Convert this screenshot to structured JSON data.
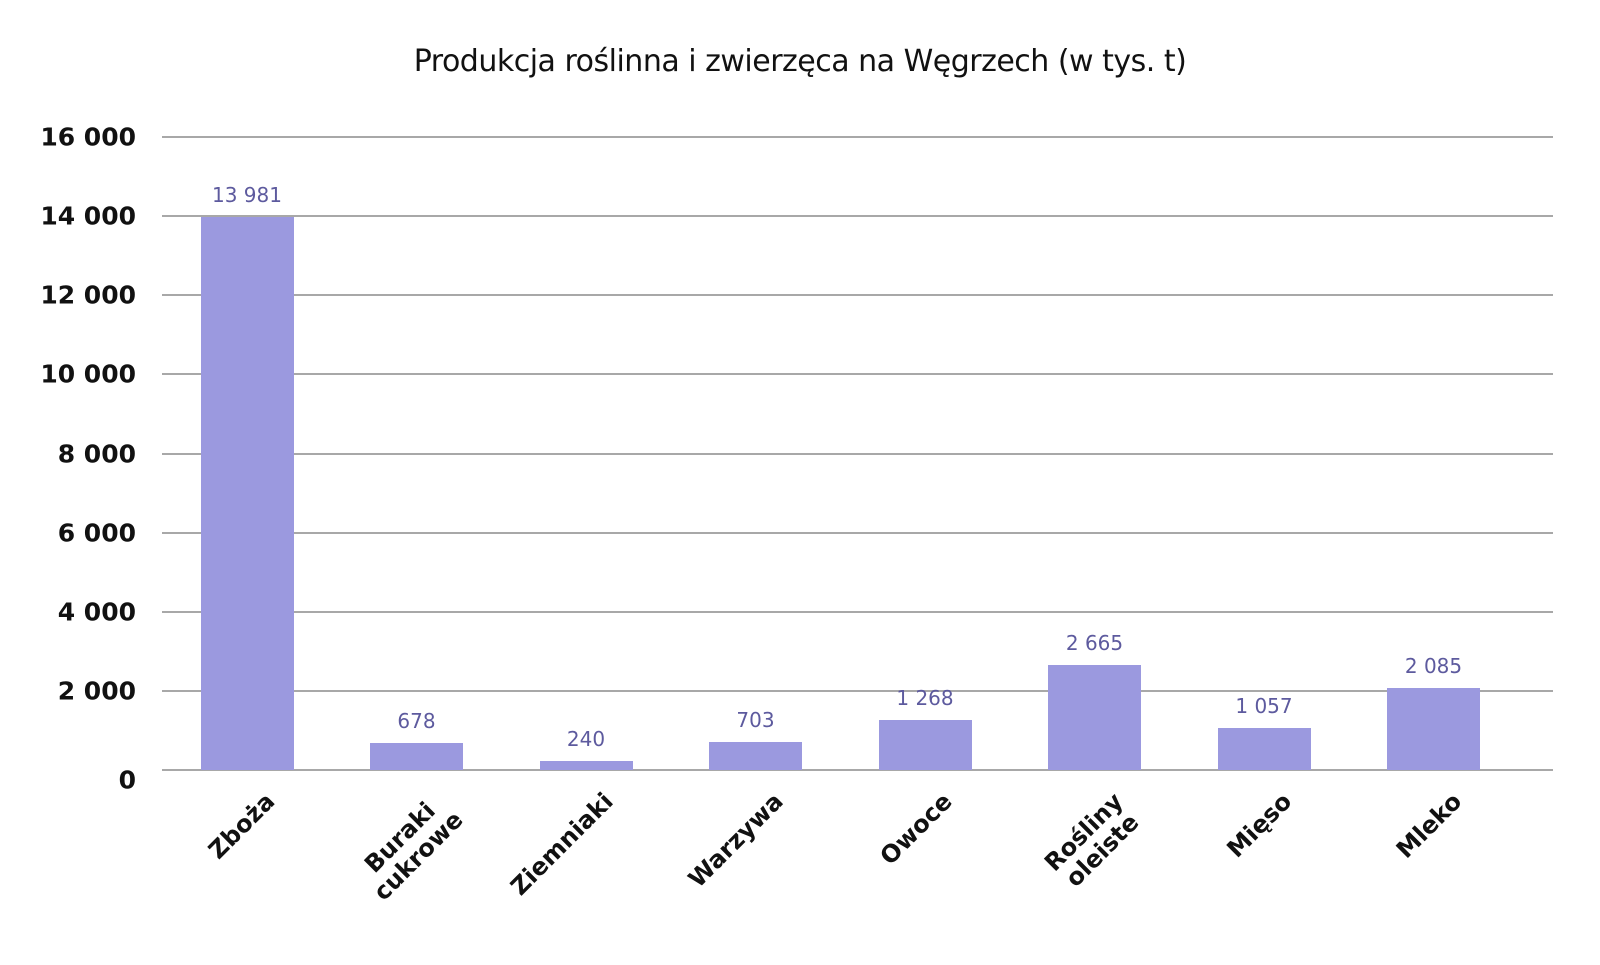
{
  "chart_data": {
    "type": "bar",
    "title": "Produkcja roślinna i zwierzęca na Węgrzech (w tys. t)",
    "xlabel": "",
    "ylabel": "",
    "ylim": [
      0,
      16000
    ],
    "yticks": [
      0,
      2000,
      4000,
      6000,
      8000,
      10000,
      12000,
      14000,
      16000
    ],
    "ytick_labels": [
      "0",
      "2 000",
      "4 000",
      "6 000",
      "8 000",
      "10 000",
      "12 000",
      "14 000",
      "16 000"
    ],
    "grid": true,
    "legend": null,
    "categories": [
      "Zboża",
      "Buraki cukrowe",
      "Ziemniaki",
      "Warzywa",
      "Owoce",
      "Rośliny oleiste",
      "Mięso",
      "Mleko"
    ],
    "category_labels_display": [
      "Zboża",
      "Buraki\ncukrowe",
      "Ziemniaki",
      "Warzywa",
      "Owoce",
      "Rośliny\noleiste",
      "Mięso",
      "Mleko"
    ],
    "values": [
      13981,
      678,
      240,
      703,
      1268,
      2665,
      1057,
      2085
    ],
    "value_labels": [
      "13 981",
      "678",
      "240",
      "703",
      "1 268",
      "2 665",
      "1 057",
      "2 085"
    ],
    "bar_color": "#9b99df",
    "value_label_color": "#5d5a9e",
    "gridline_color": "#a8a8a8"
  }
}
